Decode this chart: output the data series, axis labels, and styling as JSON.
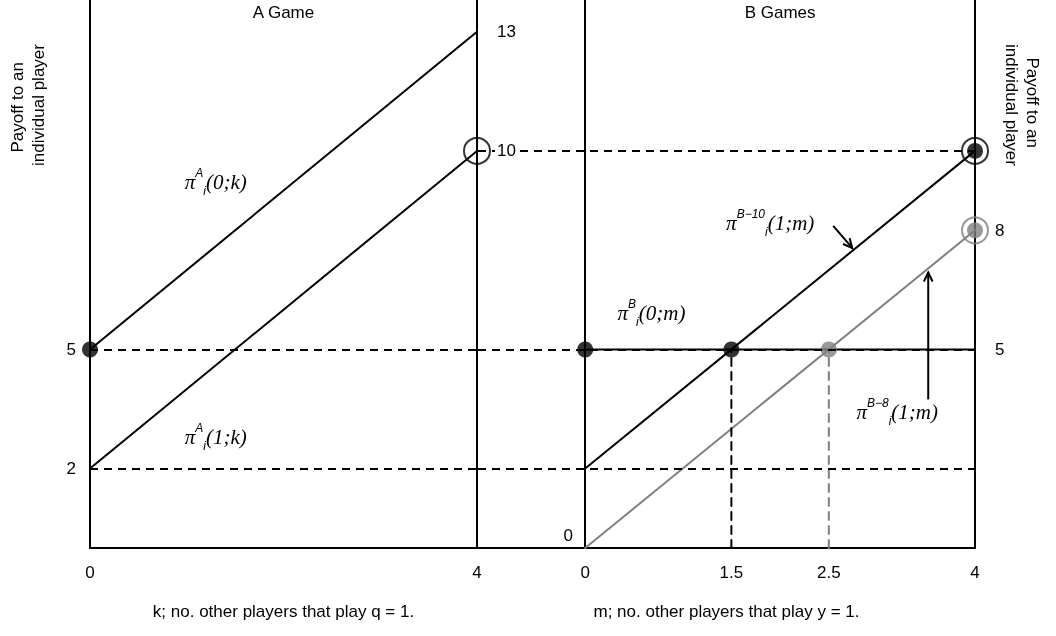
{
  "chart_data": [
    {
      "type": "line",
      "title": "A Game",
      "xlabel": "k; no. other players that play q = 1.",
      "ylabel": "Payoff to an individual player",
      "xlim": [
        0,
        4
      ],
      "xticks": [
        0,
        4
      ],
      "ylim": [
        0,
        13.8
      ],
      "yticks": [
        2,
        5
      ],
      "y2lim": [
        0,
        13.8
      ],
      "y2ticks": [
        10,
        13
      ],
      "grid": false,
      "series": [
        {
          "color": "#000000",
          "x": [
            0,
            4
          ],
          "values": [
            5,
            13
          ],
          "line_style": "solid"
        },
        {
          "color": "#000000",
          "x": [
            0,
            4
          ],
          "values": [
            2,
            10
          ],
          "line_style": "solid"
        },
        {
          "type": "scatter",
          "color": "#000000",
          "x": [
            0
          ],
          "values": [
            5
          ],
          "marker": "circle"
        },
        {
          "type": "scatter",
          "color": "#000000",
          "x": [
            4
          ],
          "values": [
            10
          ],
          "marker": "circle",
          "line_style": "solid"
        }
      ],
      "ref_lines": [
        {
          "axis": "y",
          "value": 5,
          "color": "#000000",
          "line_style": "dashed"
        },
        {
          "axis": "y",
          "value": 2,
          "color": "#000000",
          "line_style": "dashed"
        }
      ],
      "annotations": [
        {
          "text": "π$^{A}$$_{i}$(0;k)",
          "x": 1.3,
          "y": 7.6
        },
        {
          "text": "π$^{A}$$_{i}$(1;k)",
          "x": 1.3,
          "y": 4.6
        }
      ]
    },
    {
      "type": "line",
      "title": "B Games",
      "xlabel": "m; no. other players that play y = 1.",
      "y2label": "Payoff to an individual player",
      "xlim": [
        -1.1,
        4
      ],
      "xticks": [
        0,
        1.5,
        2.5,
        4
      ],
      "ylim": [
        0,
        13.8
      ],
      "y2lim": [
        0,
        13.8
      ],
      "y2ticks": [
        5,
        8
      ],
      "grid": false,
      "series": [
        {
          "color": "#000000",
          "x": [
            0,
            4
          ],
          "values": [
            5,
            5
          ],
          "line_style": "solid"
        },
        {
          "color": "#000000",
          "x": [
            0,
            4
          ],
          "values": [
            2,
            10
          ],
          "line_style": "solid"
        },
        {
          "color": "#808080",
          "x": [
            0,
            4
          ],
          "values": [
            0,
            8
          ],
          "line_style": "solid"
        },
        {
          "color": "#000000",
          "x": [
            1.5,
            1.5
          ],
          "values": [
            0,
            5
          ],
          "line_style": "dashed"
        },
        {
          "color": "#808080",
          "x": [
            2.5,
            2.5
          ],
          "values": [
            0,
            5
          ],
          "line_style": "dashed"
        },
        {
          "type": "scatter",
          "color": "#000000",
          "x": [
            0,
            1.5,
            4
          ],
          "values": [
            5,
            5,
            10
          ],
          "marker": "circle"
        },
        {
          "type": "scatter",
          "color": "#808080",
          "x": [
            2.5,
            4
          ],
          "values": [
            5,
            8
          ],
          "marker": "circle"
        },
        {
          "type": "scatter",
          "color": "#000000",
          "x": [
            4
          ],
          "values": [
            10
          ],
          "marker": "circle",
          "line_style": "solid"
        },
        {
          "type": "scatter",
          "color": "#808080",
          "x": [
            4
          ],
          "values": [
            8
          ],
          "marker": "circle",
          "line_style": "solid"
        }
      ],
      "ref_lines": [
        {
          "axis": "y",
          "value": 10,
          "color": "#000000",
          "line_style": "dashed"
        },
        {
          "axis": "y",
          "value": 5,
          "color": "#000000",
          "line_style": "dashed"
        },
        {
          "axis": "y",
          "value": 2,
          "color": "#000000",
          "line_style": "dashed"
        }
      ],
      "annotations": [
        {
          "text": "π$^{B}$$_{i}$(0;m)",
          "x": 0.68,
          "y": 5
        },
        {
          "text": "π$^{B−10}$$_{i}$(1;m)",
          "x": 2.74,
          "y": 7.48
        },
        {
          "text": "π$^{B−8}$$_{i}$(1;m)",
          "x": 3.52,
          "y": 7.04
        },
        {
          "text": "0",
          "x": 0,
          "y": 0
        }
      ]
    }
  ]
}
